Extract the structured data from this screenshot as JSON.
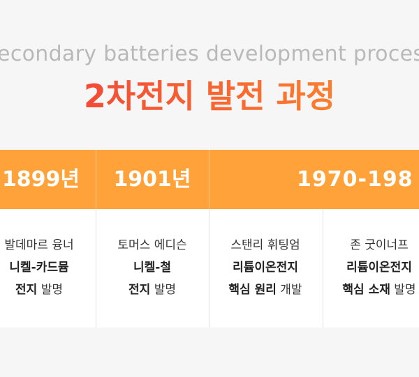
{
  "header": {
    "subtitle": "Secondary batteries development process",
    "title": "2차전지 발전 과정"
  },
  "timeline": {
    "periods": [
      "1899년",
      "1901년",
      "1970-198"
    ],
    "entries": [
      {
        "person": "발데마르 융너",
        "invention": "니켈-카드뮴",
        "detail_bold": "전지",
        "detail": "발명"
      },
      {
        "person": "토머스 에디슨",
        "invention": "니켈-철",
        "detail_bold": "전지",
        "detail": "발명"
      },
      {
        "person": "스탠리 휘팅엄",
        "invention": "리튬이온전지",
        "detail_bold": "핵심 원리",
        "detail": "개발"
      },
      {
        "person": "존 굿이너프",
        "invention": "리튬이온전지",
        "detail_bold": "핵심 소재",
        "detail": "발명"
      }
    ]
  }
}
